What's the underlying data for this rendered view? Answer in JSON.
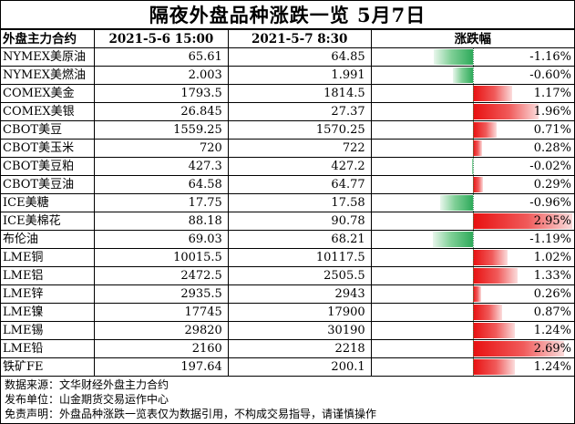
{
  "title": "隔夜外盘品种涨跌一览 5月7日",
  "headers": {
    "name": "外盘主力合约",
    "prev": "2021-5-6 15:00",
    "curr": "2021-5-7 8:30",
    "change": "涨跌幅"
  },
  "colors": {
    "up_bar": "#e81010",
    "down_bar": "#2eaa5a"
  },
  "bar_scale_max_percent": 3.0,
  "rows": [
    {
      "name": "NYMEX美原油",
      "prev": "65.61",
      "curr": "64.85",
      "change": "-1.16%",
      "change_value": -1.16
    },
    {
      "name": "NYMEX美燃油",
      "prev": "2.003",
      "curr": "1.991",
      "change": "-0.60%",
      "change_value": -0.6
    },
    {
      "name": "COMEX美金",
      "prev": "1793.5",
      "curr": "1814.5",
      "change": "1.17%",
      "change_value": 1.17
    },
    {
      "name": "COMEX美银",
      "prev": "26.845",
      "curr": "27.37",
      "change": "1.96%",
      "change_value": 1.96
    },
    {
      "name": "CBOT美豆",
      "prev": "1559.25",
      "curr": "1570.25",
      "change": "0.71%",
      "change_value": 0.71
    },
    {
      "name": "CBOT美玉米",
      "prev": "720",
      "curr": "722",
      "change": "0.28%",
      "change_value": 0.28
    },
    {
      "name": "CBOT美豆粕",
      "prev": "427.3",
      "curr": "427.2",
      "change": "-0.02%",
      "change_value": -0.02
    },
    {
      "name": "CBOT美豆油",
      "prev": "64.58",
      "curr": "64.77",
      "change": "0.29%",
      "change_value": 0.29
    },
    {
      "name": "ICE美糖",
      "prev": "17.75",
      "curr": "17.58",
      "change": "-0.96%",
      "change_value": -0.96
    },
    {
      "name": "ICE美棉花",
      "prev": "88.18",
      "curr": "90.78",
      "change": "2.95%",
      "change_value": 2.95
    },
    {
      "name": "布伦油",
      "prev": "69.03",
      "curr": "68.21",
      "change": "-1.19%",
      "change_value": -1.19
    },
    {
      "name": "LME铜",
      "prev": "10015.5",
      "curr": "10117.5",
      "change": "1.02%",
      "change_value": 1.02
    },
    {
      "name": "LME铝",
      "prev": "2472.5",
      "curr": "2505.5",
      "change": "1.33%",
      "change_value": 1.33
    },
    {
      "name": "LME锌",
      "prev": "2935.5",
      "curr": "2943",
      "change": "0.26%",
      "change_value": 0.26
    },
    {
      "name": "LME镍",
      "prev": "17745",
      "curr": "17900",
      "change": "0.87%",
      "change_value": 0.87
    },
    {
      "name": "LME锡",
      "prev": "29820",
      "curr": "30190",
      "change": "1.24%",
      "change_value": 1.24
    },
    {
      "name": "LME铅",
      "prev": "2160",
      "curr": "2218",
      "change": "2.69%",
      "change_value": 2.69
    },
    {
      "name": "铁矿FE",
      "prev": "197.64",
      "curr": "200.1",
      "change": "1.24%",
      "change_value": 1.24
    }
  ],
  "notes": [
    "数据来源：文华财经外盘主力合约",
    "发布单位：山金期货交易运作中心",
    "免责声明：外盘品种涨跌一览表仅为数据引用，不构成交易指导，请谨慎操作"
  ]
}
